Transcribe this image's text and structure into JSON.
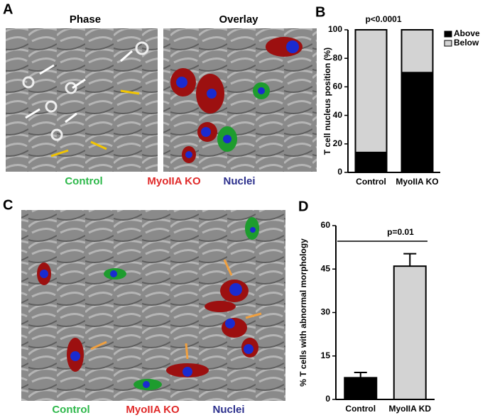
{
  "panel_labels": [
    "A",
    "B",
    "C",
    "D"
  ],
  "image_titles": [
    "Phase",
    "Overlay"
  ],
  "legend_a": [
    "Control",
    "MyoIIA KO",
    "Nuclei"
  ],
  "legend_c": [
    "Control",
    "MyoIIA KO",
    "Nuclei"
  ],
  "chart_data": [
    {
      "type": "stacked_bar",
      "title": "p<0.0001",
      "y_label": "T cell nucleus position (%)",
      "categories": [
        "Control",
        "MyoIIA KO"
      ],
      "series": [
        {
          "name": "Above",
          "color": "#000000",
          "values": [
            14,
            70
          ]
        },
        {
          "name": "Below",
          "color": "#d3d3d3",
          "values": [
            86,
            30
          ]
        }
      ],
      "ylim": [
        0,
        100
      ],
      "yticks": [
        0,
        20,
        40,
        60,
        80,
        100
      ],
      "legend": "top-right"
    },
    {
      "type": "bar",
      "title": "p=0.01",
      "y_label": "% T cells with abnormal morphology",
      "categories": [
        "Control",
        "MyoIIA KD"
      ],
      "values": [
        7.5,
        46
      ],
      "errors": [
        1.8,
        4.3
      ],
      "colors": [
        "#000000",
        "#d3d3d3"
      ],
      "ylim": [
        0,
        60
      ],
      "yticks": [
        0,
        15,
        30,
        45,
        60
      ]
    }
  ]
}
